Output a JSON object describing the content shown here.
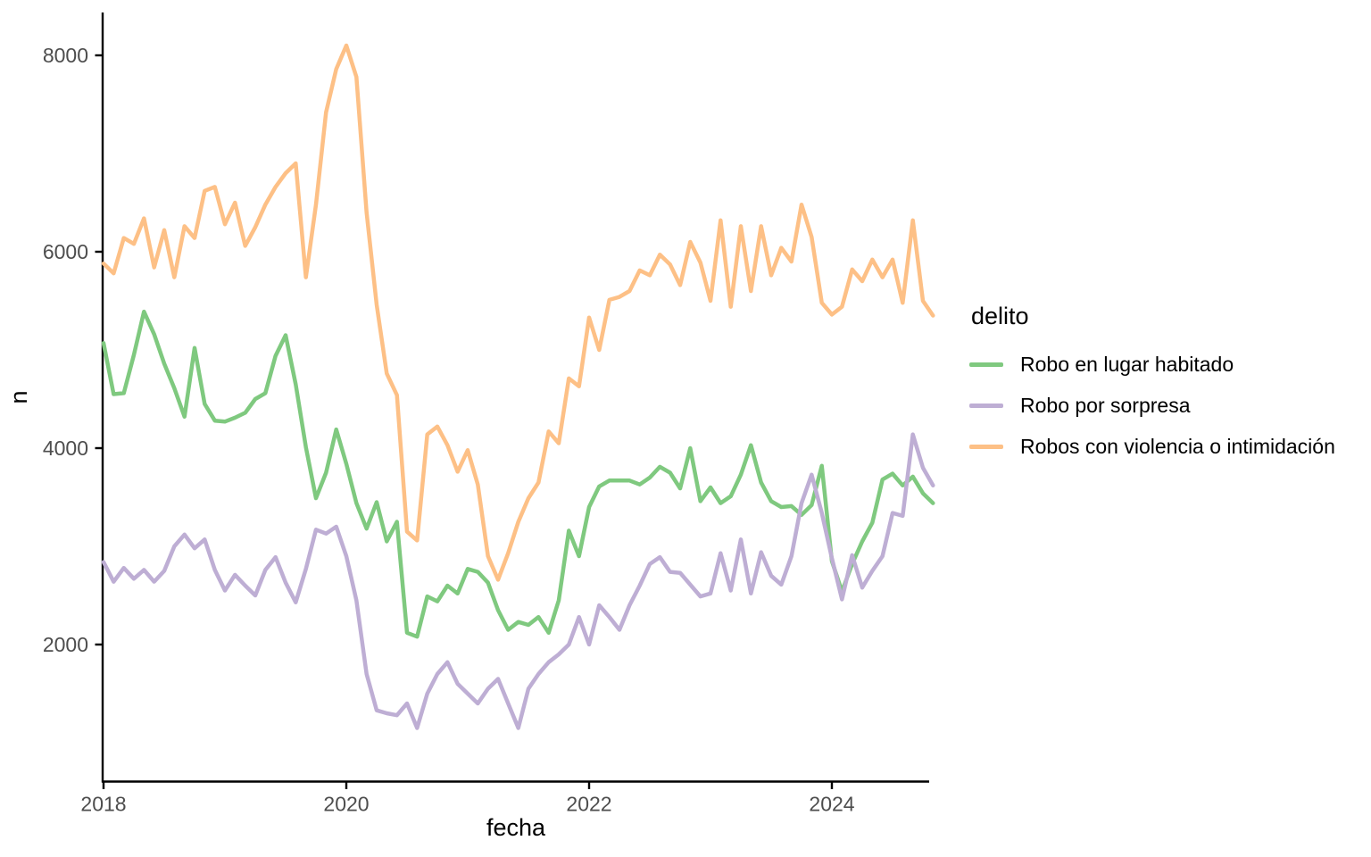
{
  "chart_data": {
    "type": "line",
    "title": "",
    "xlabel": "fecha",
    "ylabel": "n",
    "legend_title": "delito",
    "legend_position": "right",
    "grid": false,
    "xticks": [
      "2018",
      "2020",
      "2022",
      "2024"
    ],
    "yticks": [
      2000,
      4000,
      6000,
      8000
    ],
    "ylim": [
      610,
      8440
    ],
    "x_start": "2018-01",
    "x_end": "2024-11",
    "x": [
      "2018-01",
      "2018-02",
      "2018-03",
      "2018-04",
      "2018-05",
      "2018-06",
      "2018-07",
      "2018-08",
      "2018-09",
      "2018-10",
      "2018-11",
      "2018-12",
      "2019-01",
      "2019-02",
      "2019-03",
      "2019-04",
      "2019-05",
      "2019-06",
      "2019-07",
      "2019-08",
      "2019-09",
      "2019-10",
      "2019-11",
      "2019-12",
      "2020-01",
      "2020-02",
      "2020-03",
      "2020-04",
      "2020-05",
      "2020-06",
      "2020-07",
      "2020-08",
      "2020-09",
      "2020-10",
      "2020-11",
      "2020-12",
      "2021-01",
      "2021-02",
      "2021-03",
      "2021-04",
      "2021-05",
      "2021-06",
      "2021-07",
      "2021-08",
      "2021-09",
      "2021-10",
      "2021-11",
      "2021-12",
      "2022-01",
      "2022-02",
      "2022-03",
      "2022-04",
      "2022-05",
      "2022-06",
      "2022-07",
      "2022-08",
      "2022-09",
      "2022-10",
      "2022-11",
      "2022-12",
      "2023-01",
      "2023-02",
      "2023-03",
      "2023-04",
      "2023-05",
      "2023-06",
      "2023-07",
      "2023-08",
      "2023-09",
      "2023-10",
      "2023-11",
      "2023-12",
      "2024-01",
      "2024-02",
      "2024-03",
      "2024-04",
      "2024-05",
      "2024-06",
      "2024-07",
      "2024-08",
      "2024-09",
      "2024-10",
      "2024-11"
    ],
    "series": [
      {
        "name": "Robo en lugar habitado",
        "color": "#7FC97F",
        "values": [
          5070,
          4550,
          4560,
          4950,
          5390,
          5160,
          4860,
          4610,
          4320,
          5020,
          4450,
          4280,
          4270,
          4310,
          4360,
          4500,
          4560,
          4940,
          5150,
          4650,
          4010,
          3490,
          3750,
          4190,
          3840,
          3440,
          3180,
          3450,
          3050,
          3250,
          2120,
          2080,
          2490,
          2440,
          2600,
          2520,
          2770,
          2740,
          2630,
          2350,
          2150,
          2230,
          2200,
          2280,
          2120,
          2450,
          3160,
          2900,
          3400,
          3610,
          3670,
          3670,
          3670,
          3630,
          3700,
          3810,
          3750,
          3590,
          4000,
          3460,
          3600,
          3440,
          3510,
          3730,
          4030,
          3650,
          3460,
          3400,
          3410,
          3320,
          3420,
          3820,
          2850,
          2540,
          2820,
          3050,
          3240,
          3680,
          3740,
          3620,
          3710,
          3540,
          3440
        ]
      },
      {
        "name": "Robo por sorpresa",
        "color": "#BEAED4",
        "values": [
          2840,
          2640,
          2780,
          2670,
          2760,
          2640,
          2750,
          3000,
          3120,
          2980,
          3070,
          2760,
          2550,
          2710,
          2600,
          2500,
          2760,
          2890,
          2630,
          2430,
          2770,
          3170,
          3130,
          3200,
          2900,
          2450,
          1700,
          1330,
          1300,
          1280,
          1400,
          1150,
          1500,
          1700,
          1820,
          1600,
          1500,
          1400,
          1550,
          1650,
          1400,
          1150,
          1550,
          1700,
          1820,
          1900,
          2000,
          2280,
          2000,
          2400,
          2280,
          2150,
          2400,
          2600,
          2820,
          2890,
          2740,
          2730,
          2610,
          2490,
          2520,
          2930,
          2550,
          3070,
          2520,
          2940,
          2700,
          2610,
          2900,
          3440,
          3730,
          3340,
          2880,
          2460,
          2910,
          2580,
          2750,
          2900,
          3340,
          3310,
          4140,
          3800,
          3620
        ]
      },
      {
        "name": "Robos con violencia o intimidación",
        "color": "#FDC086",
        "values": [
          5880,
          5780,
          6140,
          6080,
          6340,
          5840,
          6220,
          5740,
          6260,
          6140,
          6620,
          6660,
          6280,
          6500,
          6060,
          6250,
          6480,
          6660,
          6800,
          6900,
          5740,
          6480,
          7420,
          7860,
          8100,
          7780,
          6400,
          5460,
          4760,
          4540,
          3150,
          3060,
          4140,
          4220,
          4030,
          3760,
          3980,
          3630,
          2900,
          2660,
          2930,
          3250,
          3490,
          3650,
          4170,
          4050,
          4710,
          4630,
          5330,
          5000,
          5510,
          5540,
          5600,
          5810,
          5760,
          5970,
          5870,
          5660,
          6100,
          5890,
          5500,
          6320,
          5440,
          6260,
          5600,
          6260,
          5760,
          6040,
          5900,
          6480,
          6150,
          5480,
          5360,
          5440,
          5820,
          5700,
          5920,
          5740,
          5920,
          5480,
          6320,
          5500,
          5350
        ]
      }
    ],
    "style": {
      "axis_color": "#000000",
      "tick_label_color": "#4D4D4D",
      "line_width": 4.5
    }
  }
}
